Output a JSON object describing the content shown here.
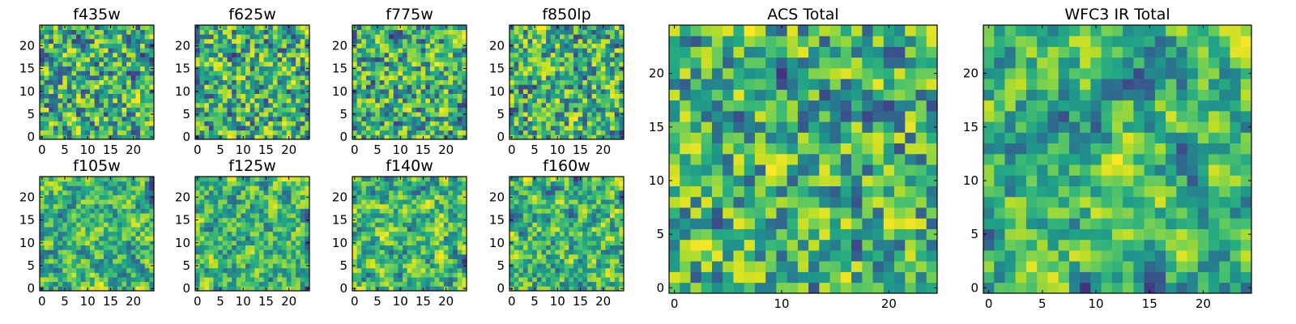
{
  "chart_data": [
    {
      "type": "heatmap",
      "title": "f435w",
      "xticks": [
        "0",
        "5",
        "10",
        "15",
        "20"
      ],
      "yticks": [
        "0",
        "5",
        "10",
        "15",
        "20"
      ],
      "xlim": [
        0,
        25
      ],
      "ylim": [
        0,
        25
      ],
      "colormap": "viridis",
      "grid": false,
      "seed": 11,
      "smooth": 0.15
    },
    {
      "type": "heatmap",
      "title": "f625w",
      "xticks": [
        "0",
        "5",
        "10",
        "15",
        "20"
      ],
      "yticks": [
        "0",
        "5",
        "10",
        "15",
        "20"
      ],
      "xlim": [
        0,
        25
      ],
      "ylim": [
        0,
        25
      ],
      "colormap": "viridis",
      "grid": false,
      "seed": 23,
      "smooth": 0.2
    },
    {
      "type": "heatmap",
      "title": "f775w",
      "xticks": [
        "0",
        "5",
        "10",
        "15",
        "20"
      ],
      "yticks": [
        "0",
        "5",
        "10",
        "15",
        "20"
      ],
      "xlim": [
        0,
        25
      ],
      "ylim": [
        0,
        25
      ],
      "colormap": "viridis",
      "grid": false,
      "seed": 37,
      "smooth": 0.2
    },
    {
      "type": "heatmap",
      "title": "f850lp",
      "xticks": [
        "0",
        "5",
        "10",
        "15",
        "20"
      ],
      "yticks": [
        "0",
        "5",
        "10",
        "15",
        "20"
      ],
      "xlim": [
        0,
        25
      ],
      "ylim": [
        0,
        25
      ],
      "colormap": "viridis",
      "grid": false,
      "seed": 41,
      "smooth": 0.15
    },
    {
      "type": "heatmap",
      "title": "f105w",
      "xticks": [
        "0",
        "5",
        "10",
        "15",
        "20"
      ],
      "yticks": [
        "0",
        "5",
        "10",
        "15",
        "20"
      ],
      "xlim": [
        0,
        25
      ],
      "ylim": [
        0,
        25
      ],
      "colormap": "viridis",
      "grid": false,
      "seed": 53,
      "smooth": 0.55
    },
    {
      "type": "heatmap",
      "title": "f125w",
      "xticks": [
        "0",
        "5",
        "10",
        "15",
        "20"
      ],
      "yticks": [
        "0",
        "5",
        "10",
        "15",
        "20"
      ],
      "xlim": [
        0,
        25
      ],
      "ylim": [
        0,
        25
      ],
      "colormap": "viridis",
      "grid": false,
      "seed": 61,
      "smooth": 0.55
    },
    {
      "type": "heatmap",
      "title": "f140w",
      "xticks": [
        "0",
        "5",
        "10",
        "15",
        "20"
      ],
      "yticks": [
        "0",
        "5",
        "10",
        "15",
        "20"
      ],
      "xlim": [
        0,
        25
      ],
      "ylim": [
        0,
        25
      ],
      "colormap": "viridis",
      "grid": false,
      "seed": 73,
      "smooth": 0.55
    },
    {
      "type": "heatmap",
      "title": "f160w",
      "xticks": [
        "0",
        "5",
        "10",
        "15",
        "20"
      ],
      "yticks": [
        "0",
        "5",
        "10",
        "15",
        "20"
      ],
      "xlim": [
        0,
        25
      ],
      "ylim": [
        0,
        25
      ],
      "colormap": "viridis",
      "grid": false,
      "seed": 89,
      "smooth": 0.55
    },
    {
      "type": "heatmap",
      "title": "ACS Total",
      "xticks": [
        "0",
        "10",
        "20"
      ],
      "yticks": [
        "0",
        "5",
        "10",
        "15",
        "20"
      ],
      "xlim": [
        0,
        25
      ],
      "ylim": [
        0,
        25
      ],
      "colormap": "viridis",
      "grid": false,
      "seed": 97,
      "smooth": 0.3
    },
    {
      "type": "heatmap",
      "title": "WFC3 IR Total",
      "xticks": [
        "0",
        "5",
        "10",
        "15",
        "20"
      ],
      "yticks": [
        "0",
        "5",
        "10",
        "15",
        "20"
      ],
      "xlim": [
        0,
        25
      ],
      "ylim": [
        0,
        25
      ],
      "colormap": "viridis",
      "grid": false,
      "seed": 101,
      "smooth": 0.6
    }
  ]
}
